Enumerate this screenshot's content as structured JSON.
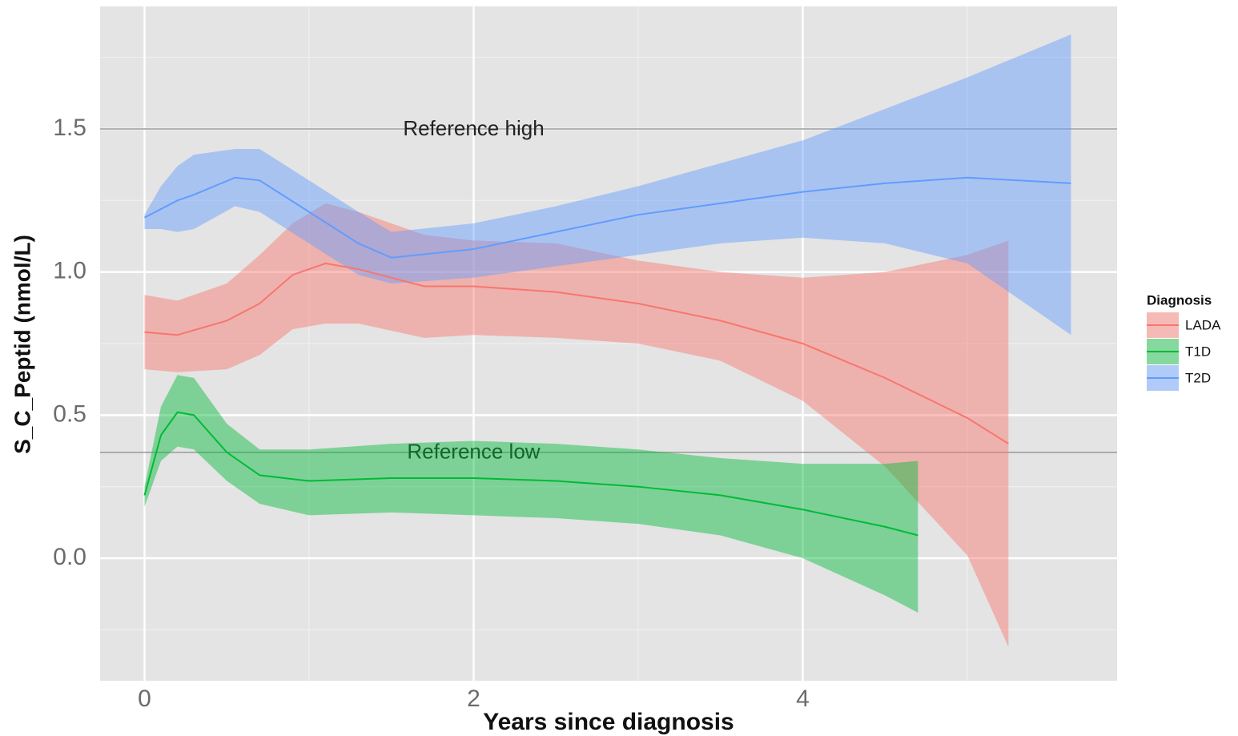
{
  "chart_data": {
    "type": "line",
    "x_label": "Years since diagnosis",
    "y_label": "S_C_Peptid (nmol/L)",
    "legend_title": "Diagnosis",
    "xlim": [
      -0.27,
      5.91
    ],
    "ylim": [
      -0.428,
      1.928
    ],
    "xticks": [
      0,
      2,
      4
    ],
    "xminor": [
      1,
      3,
      5
    ],
    "yticks": [
      {
        "value": 0,
        "label": "0.0"
      },
      {
        "value": 0.5,
        "label": "0.5"
      },
      {
        "value": 1,
        "label": "1.0"
      },
      {
        "value": 1.5,
        "label": "1.5"
      }
    ],
    "yminor": [
      -0.25,
      0.25,
      0.75,
      1.25,
      1.75
    ],
    "grid": true,
    "legend": "right",
    "reference_lines": [
      {
        "value": 1.5,
        "label": "Reference high",
        "x": 2
      },
      {
        "value": 0.37,
        "label": "Reference low",
        "x": 2
      }
    ],
    "series": [
      {
        "name": "LADA",
        "color": "#F8766D",
        "x": [
          0,
          0.2,
          0.5,
          0.7,
          0.9,
          1.1,
          1.3,
          1.7,
          2,
          2.5,
          3,
          3.5,
          4,
          4.5,
          5,
          5.25
        ],
        "values": [
          0.79,
          0.78,
          0.83,
          0.89,
          0.99,
          1.03,
          1.01,
          0.95,
          0.95,
          0.93,
          0.89,
          0.83,
          0.75,
          0.63,
          0.49,
          0.4
        ],
        "lower": [
          0.66,
          0.65,
          0.66,
          0.71,
          0.8,
          0.82,
          0.82,
          0.77,
          0.78,
          0.77,
          0.75,
          0.69,
          0.55,
          0.32,
          0.01,
          -0.31
        ],
        "upper": [
          0.92,
          0.9,
          0.96,
          1.06,
          1.17,
          1.24,
          1.21,
          1.13,
          1.11,
          1.1,
          1.04,
          1.0,
          0.98,
          1.0,
          1.06,
          1.11
        ]
      },
      {
        "name": "T1D",
        "color": "#00BA38",
        "x": [
          0,
          0.1,
          0.2,
          0.3,
          0.5,
          0.7,
          1,
          1.5,
          2,
          2.5,
          3,
          3.5,
          4,
          4.5,
          4.7
        ],
        "values": [
          0.22,
          0.43,
          0.51,
          0.5,
          0.37,
          0.29,
          0.27,
          0.28,
          0.28,
          0.27,
          0.25,
          0.22,
          0.17,
          0.11,
          0.08
        ],
        "lower": [
          0.18,
          0.34,
          0.39,
          0.38,
          0.27,
          0.19,
          0.15,
          0.16,
          0.15,
          0.14,
          0.12,
          0.08,
          0.0,
          -0.13,
          -0.19
        ],
        "upper": [
          0.25,
          0.53,
          0.64,
          0.63,
          0.47,
          0.38,
          0.38,
          0.4,
          0.41,
          0.4,
          0.38,
          0.35,
          0.33,
          0.33,
          0.34
        ]
      },
      {
        "name": "T2D",
        "color": "#619CFF",
        "x": [
          0,
          0.1,
          0.2,
          0.3,
          0.55,
          0.7,
          1,
          1.3,
          1.5,
          2,
          2.5,
          3,
          3.5,
          4,
          4.5,
          5,
          5.63
        ],
        "values": [
          1.19,
          1.22,
          1.25,
          1.27,
          1.33,
          1.32,
          1.21,
          1.1,
          1.05,
          1.08,
          1.14,
          1.2,
          1.24,
          1.28,
          1.31,
          1.33,
          1.31
        ],
        "lower": [
          1.15,
          1.15,
          1.14,
          1.15,
          1.23,
          1.21,
          1.1,
          0.99,
          0.96,
          0.98,
          1.02,
          1.06,
          1.1,
          1.12,
          1.1,
          1.03,
          0.78
        ],
        "upper": [
          1.2,
          1.3,
          1.37,
          1.41,
          1.43,
          1.43,
          1.32,
          1.21,
          1.14,
          1.17,
          1.23,
          1.3,
          1.38,
          1.46,
          1.57,
          1.68,
          1.83
        ]
      }
    ]
  }
}
